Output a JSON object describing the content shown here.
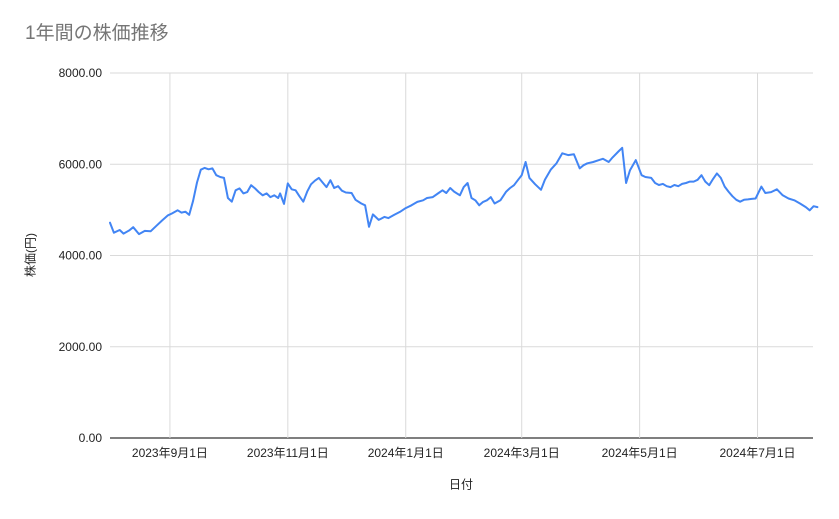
{
  "chart": {
    "title": "1年間の株価推移",
    "x_axis_title": "日付",
    "y_axis_title": "株価(円)"
  },
  "colors": {
    "background": "#ffffff",
    "title_text": "#757575",
    "axis_text": "#222222",
    "gridline": "#dadada",
    "axis_line": "#333333",
    "series_line": "#4285f4"
  },
  "chart_data": {
    "type": "line",
    "title": "1年間の株価推移",
    "xlabel": "日付",
    "ylabel": "株価(円)",
    "legend": "none",
    "grid": true,
    "ylim": [
      0,
      8000
    ],
    "x_start_date": "2023-08-01",
    "x_end_date": "2024-08-01",
    "y_ticks": [
      {
        "value": 8000,
        "label": "8000.00"
      },
      {
        "value": 6000,
        "label": "6000.00"
      },
      {
        "value": 4000,
        "label": "4000.00"
      },
      {
        "value": 2000,
        "label": "2000.00"
      },
      {
        "value": 0,
        "label": "0.00"
      }
    ],
    "x_ticks": [
      {
        "date": "2023-09-01",
        "label": "2023年9月1日"
      },
      {
        "date": "2023-11-01",
        "label": "2023年11月1日"
      },
      {
        "date": "2024-01-01",
        "label": "2024年1月1日"
      },
      {
        "date": "2024-03-01",
        "label": "2024年3月1日"
      },
      {
        "date": "2024-05-01",
        "label": "2024年5月1日"
      },
      {
        "date": "2024-07-01",
        "label": "2024年7月1日"
      }
    ],
    "series": [
      {
        "name": "株価",
        "color": "#4285f4",
        "points": [
          [
            "2023-08-01",
            4720
          ],
          [
            "2023-08-03",
            4500
          ],
          [
            "2023-08-06",
            4560
          ],
          [
            "2023-08-08",
            4480
          ],
          [
            "2023-08-11",
            4550
          ],
          [
            "2023-08-13",
            4620
          ],
          [
            "2023-08-16",
            4470
          ],
          [
            "2023-08-19",
            4540
          ],
          [
            "2023-08-22",
            4530
          ],
          [
            "2023-08-25",
            4650
          ],
          [
            "2023-08-28",
            4770
          ],
          [
            "2023-08-31",
            4880
          ],
          [
            "2023-09-02",
            4920
          ],
          [
            "2023-09-05",
            4990
          ],
          [
            "2023-09-07",
            4940
          ],
          [
            "2023-09-09",
            4960
          ],
          [
            "2023-09-11",
            4890
          ],
          [
            "2023-09-13",
            5200
          ],
          [
            "2023-09-15",
            5600
          ],
          [
            "2023-09-17",
            5880
          ],
          [
            "2023-09-19",
            5920
          ],
          [
            "2023-09-21",
            5890
          ],
          [
            "2023-09-23",
            5910
          ],
          [
            "2023-09-25",
            5760
          ],
          [
            "2023-09-27",
            5720
          ],
          [
            "2023-09-29",
            5700
          ],
          [
            "2023-10-01",
            5260
          ],
          [
            "2023-10-03",
            5180
          ],
          [
            "2023-10-05",
            5430
          ],
          [
            "2023-10-07",
            5470
          ],
          [
            "2023-10-09",
            5360
          ],
          [
            "2023-10-11",
            5390
          ],
          [
            "2023-10-13",
            5540
          ],
          [
            "2023-10-15",
            5470
          ],
          [
            "2023-10-17",
            5390
          ],
          [
            "2023-10-19",
            5320
          ],
          [
            "2023-10-21",
            5360
          ],
          [
            "2023-10-23",
            5280
          ],
          [
            "2023-10-25",
            5320
          ],
          [
            "2023-10-27",
            5260
          ],
          [
            "2023-10-28",
            5360
          ],
          [
            "2023-10-30",
            5130
          ],
          [
            "2023-11-01",
            5580
          ],
          [
            "2023-11-03",
            5450
          ],
          [
            "2023-11-05",
            5430
          ],
          [
            "2023-11-07",
            5300
          ],
          [
            "2023-11-09",
            5180
          ],
          [
            "2023-11-11",
            5400
          ],
          [
            "2023-11-13",
            5560
          ],
          [
            "2023-11-15",
            5640
          ],
          [
            "2023-11-17",
            5700
          ],
          [
            "2023-11-19",
            5600
          ],
          [
            "2023-11-21",
            5500
          ],
          [
            "2023-11-23",
            5650
          ],
          [
            "2023-11-25",
            5480
          ],
          [
            "2023-11-27",
            5520
          ],
          [
            "2023-11-29",
            5420
          ],
          [
            "2023-12-01",
            5380
          ],
          [
            "2023-12-04",
            5370
          ],
          [
            "2023-12-06",
            5220
          ],
          [
            "2023-12-09",
            5140
          ],
          [
            "2023-12-11",
            5100
          ],
          [
            "2023-12-13",
            4630
          ],
          [
            "2023-12-15",
            4900
          ],
          [
            "2023-12-18",
            4780
          ],
          [
            "2023-12-21",
            4845
          ],
          [
            "2023-12-23",
            4820
          ],
          [
            "2023-12-26",
            4890
          ],
          [
            "2023-12-29",
            4955
          ],
          [
            "2024-01-01",
            5040
          ],
          [
            "2024-01-04",
            5100
          ],
          [
            "2024-01-07",
            5175
          ],
          [
            "2024-01-10",
            5210
          ],
          [
            "2024-01-12",
            5260
          ],
          [
            "2024-01-15",
            5280
          ],
          [
            "2024-01-18",
            5370
          ],
          [
            "2024-01-20",
            5430
          ],
          [
            "2024-01-22",
            5370
          ],
          [
            "2024-01-24",
            5480
          ],
          [
            "2024-01-26",
            5400
          ],
          [
            "2024-01-29",
            5320
          ],
          [
            "2024-01-31",
            5500
          ],
          [
            "2024-02-02",
            5590
          ],
          [
            "2024-02-04",
            5260
          ],
          [
            "2024-02-06",
            5210
          ],
          [
            "2024-02-08",
            5100
          ],
          [
            "2024-02-10",
            5175
          ],
          [
            "2024-02-12",
            5210
          ],
          [
            "2024-02-14",
            5280
          ],
          [
            "2024-02-16",
            5140
          ],
          [
            "2024-02-19",
            5210
          ],
          [
            "2024-02-22",
            5400
          ],
          [
            "2024-02-24",
            5480
          ],
          [
            "2024-02-26",
            5540
          ],
          [
            "2024-02-28",
            5650
          ],
          [
            "2024-03-01",
            5760
          ],
          [
            "2024-03-03",
            6050
          ],
          [
            "2024-03-05",
            5700
          ],
          [
            "2024-03-08",
            5560
          ],
          [
            "2024-03-11",
            5440
          ],
          [
            "2024-03-13",
            5660
          ],
          [
            "2024-03-16",
            5880
          ],
          [
            "2024-03-19",
            6020
          ],
          [
            "2024-03-22",
            6240
          ],
          [
            "2024-03-25",
            6200
          ],
          [
            "2024-03-28",
            6220
          ],
          [
            "2024-03-31",
            5910
          ],
          [
            "2024-04-02",
            5980
          ],
          [
            "2024-04-04",
            6020
          ],
          [
            "2024-04-07",
            6050
          ],
          [
            "2024-04-10",
            6090
          ],
          [
            "2024-04-12",
            6120
          ],
          [
            "2024-04-15",
            6050
          ],
          [
            "2024-04-17",
            6150
          ],
          [
            "2024-04-20",
            6280
          ],
          [
            "2024-04-22",
            6360
          ],
          [
            "2024-04-24",
            5590
          ],
          [
            "2024-04-26",
            5870
          ],
          [
            "2024-04-29",
            6090
          ],
          [
            "2024-05-02",
            5760
          ],
          [
            "2024-05-04",
            5720
          ],
          [
            "2024-05-07",
            5700
          ],
          [
            "2024-05-09",
            5590
          ],
          [
            "2024-05-11",
            5545
          ],
          [
            "2024-05-13",
            5570
          ],
          [
            "2024-05-15",
            5520
          ],
          [
            "2024-05-17",
            5500
          ],
          [
            "2024-05-19",
            5545
          ],
          [
            "2024-05-21",
            5520
          ],
          [
            "2024-05-23",
            5570
          ],
          [
            "2024-05-25",
            5590
          ],
          [
            "2024-05-27",
            5620
          ],
          [
            "2024-05-29",
            5620
          ],
          [
            "2024-05-31",
            5660
          ],
          [
            "2024-06-02",
            5760
          ],
          [
            "2024-06-04",
            5620
          ],
          [
            "2024-06-06",
            5540
          ],
          [
            "2024-06-08",
            5680
          ],
          [
            "2024-06-10",
            5800
          ],
          [
            "2024-06-12",
            5700
          ],
          [
            "2024-06-14",
            5510
          ],
          [
            "2024-06-16",
            5400
          ],
          [
            "2024-06-18",
            5300
          ],
          [
            "2024-06-20",
            5220
          ],
          [
            "2024-06-22",
            5180
          ],
          [
            "2024-06-24",
            5220
          ],
          [
            "2024-06-26",
            5230
          ],
          [
            "2024-06-28",
            5240
          ],
          [
            "2024-06-30",
            5250
          ],
          [
            "2024-07-03",
            5510
          ],
          [
            "2024-07-05",
            5370
          ],
          [
            "2024-07-08",
            5390
          ],
          [
            "2024-07-11",
            5450
          ],
          [
            "2024-07-14",
            5320
          ],
          [
            "2024-07-17",
            5250
          ],
          [
            "2024-07-20",
            5210
          ],
          [
            "2024-07-23",
            5140
          ],
          [
            "2024-07-26",
            5060
          ],
          [
            "2024-07-28",
            4990
          ],
          [
            "2024-07-30",
            5080
          ],
          [
            "2024-08-01",
            5060
          ]
        ]
      }
    ]
  }
}
